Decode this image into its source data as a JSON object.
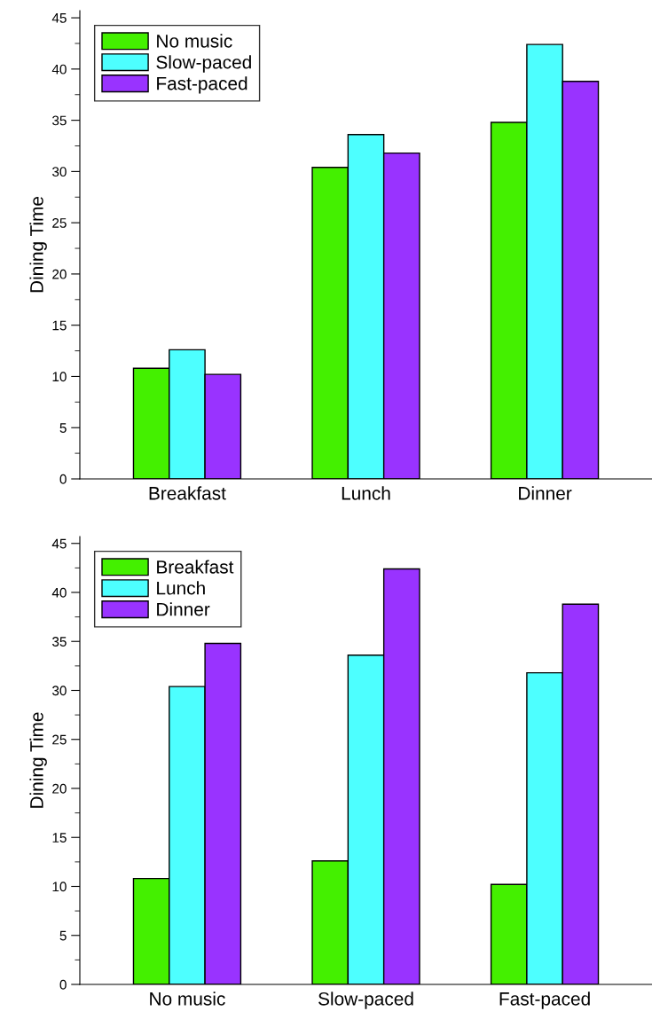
{
  "chart_data": [
    {
      "type": "bar",
      "ylabel": "Dining Time",
      "categories": [
        "Breakfast",
        "Lunch",
        "Dinner"
      ],
      "ylim": [
        0,
        45.7
      ],
      "yticks": [
        0,
        5,
        10,
        15,
        20,
        25,
        30,
        35,
        40,
        45
      ],
      "legend": "top left",
      "grid": false,
      "series": [
        {
          "name": "No music",
          "color": "#44f000",
          "values": [
            10.8,
            30.4,
            34.8
          ]
        },
        {
          "name": "Slow-paced",
          "color": "#4dffff",
          "values": [
            12.6,
            33.6,
            42.4
          ]
        },
        {
          "name": "Fast-paced",
          "color": "#9933ff",
          "values": [
            10.2,
            31.8,
            38.8
          ]
        }
      ]
    },
    {
      "type": "bar",
      "ylabel": "Dining Time",
      "categories": [
        "No music",
        "Slow-paced",
        "Fast-paced"
      ],
      "ylim": [
        0,
        45.7
      ],
      "yticks": [
        0,
        5,
        10,
        15,
        20,
        25,
        30,
        35,
        40,
        45
      ],
      "legend": "top left",
      "grid": false,
      "series": [
        {
          "name": "Breakfast",
          "color": "#44f000",
          "values": [
            10.8,
            12.6,
            10.2
          ]
        },
        {
          "name": "Lunch",
          "color": "#4dffff",
          "values": [
            30.4,
            33.6,
            31.8
          ]
        },
        {
          "name": "Dinner",
          "color": "#9933ff",
          "values": [
            34.8,
            42.4,
            38.8
          ]
        }
      ]
    }
  ]
}
